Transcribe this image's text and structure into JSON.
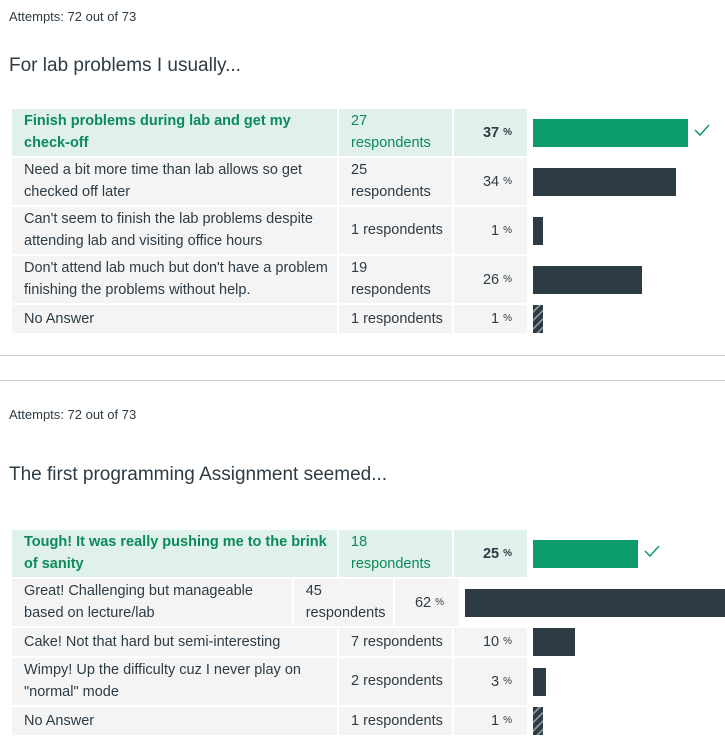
{
  "questions": [
    {
      "attempts": "Attempts: 72 out of 73",
      "text": "For lab problems I usually...",
      "answers": [
        {
          "label": "Finish problems during lab and get my check-off",
          "respondents": "27 respondents",
          "percent": "37",
          "value": 37,
          "correct": true
        },
        {
          "label": "Need a bit more time than lab allows so get checked off later",
          "respondents": "25 respondents",
          "percent": "34",
          "value": 34,
          "correct": false
        },
        {
          "label": "Can't seem to finish the lab problems despite attending lab and visiting office hours",
          "respondents": "1 respondents",
          "percent": "1",
          "value": 1,
          "correct": false
        },
        {
          "label": "Don't attend lab much but don't have a problem finishing the problems without help.",
          "respondents": "19 respondents",
          "percent": "26",
          "value": 26,
          "correct": false
        },
        {
          "label": "No Answer",
          "respondents": "1 respondents",
          "percent": "1",
          "value": 1,
          "correct": false,
          "no_answer": true
        }
      ]
    },
    {
      "attempts": "Attempts: 72 out of 73",
      "text": "The first programming Assignment seemed...",
      "answers": [
        {
          "label": "Tough! It was really pushing me to the brink of sanity",
          "respondents": "18 respondents",
          "percent": "25",
          "value": 25,
          "correct": true
        },
        {
          "label": "Great! Challenging but manageable based on lecture/lab",
          "respondents": "45 respondents",
          "percent": "62",
          "value": 62,
          "correct": false
        },
        {
          "label": "Cake! Not that hard but semi-interesting",
          "respondents": "7 respondents",
          "percent": "10",
          "value": 10,
          "correct": false
        },
        {
          "label": "Wimpy! Up the difficulty cuz I never play on \"normal\" mode",
          "respondents": "2 respondents",
          "percent": "3",
          "value": 3,
          "correct": false
        },
        {
          "label": "No Answer",
          "respondents": "1 respondents",
          "percent": "1",
          "value": 1,
          "correct": false,
          "no_answer": true
        }
      ]
    }
  ],
  "percent_symbol": "%",
  "icons": {
    "correct": "check-icon"
  },
  "colors": {
    "correct": "#0b9b6c",
    "bar": "#2d3b45",
    "correct_row_bg": "#dff1ea",
    "row_bg": "#f4f4f4"
  }
}
